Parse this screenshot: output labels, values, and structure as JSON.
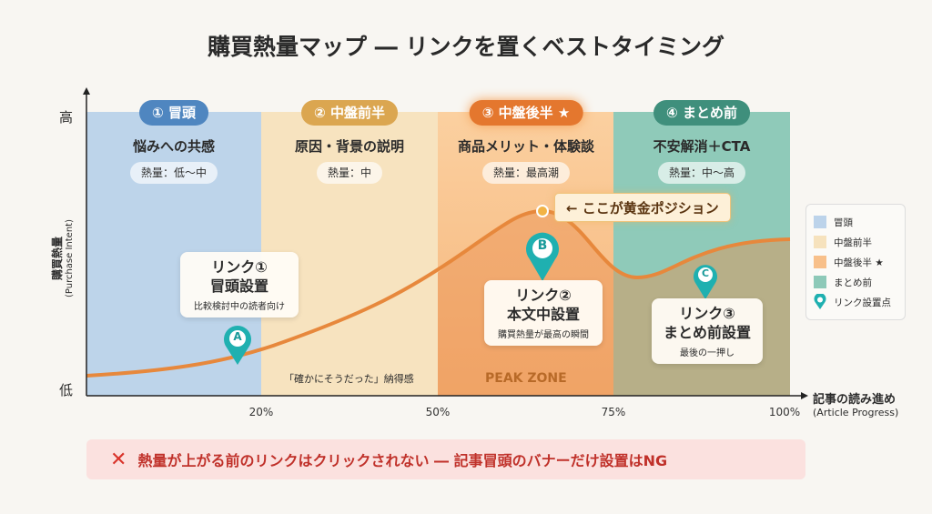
{
  "title": "購買熱量マップ ― リンクを置くベストタイミング",
  "y_axis": {
    "label": "購買熱量",
    "sub": "(Purchase Intent)",
    "high": "高",
    "low": "低"
  },
  "x_axis": {
    "label": "記事の読み進め",
    "sub": "(Article Progress)",
    "ticks": [
      "20%",
      "50%",
      "75%",
      "100%"
    ]
  },
  "phases": [
    {
      "badge": "① 冒頭",
      "heading": "悩みへの共感",
      "heat": "熱量：低〜中",
      "color": "#4f86c0",
      "bg": "#bcd3ea"
    },
    {
      "badge": "② 中盤前半",
      "heading": "原因・背景の説明",
      "heat": "熱量：中",
      "color": "#dba650",
      "bg": "#f6e2bd"
    },
    {
      "badge": "③ 中盤後半 ★",
      "heading": "商品メリット・体験談",
      "heat": "熱量：最高潮",
      "color": "#e4772e",
      "bg": "#f8c08a"
    },
    {
      "badge": "④ まとめ前",
      "heading": "不安解消＋CTA",
      "heat": "熱量：中〜高",
      "color": "#3f8f7c",
      "bg": "#8dc9b8"
    }
  ],
  "callout": "← ここが黄金ポジション",
  "links": [
    {
      "marker": "A",
      "title1": "リンク①",
      "title2": "冒頭設置",
      "sub": "比較検討中の読者向け"
    },
    {
      "marker": "B",
      "title1": "リンク②",
      "title2": "本文中設置",
      "sub": "購買熱量が最高の瞬間"
    },
    {
      "marker": "C",
      "title1": "リンク③",
      "title2": "まとめ前設置",
      "sub": "最後の一押し"
    }
  ],
  "notes": {
    "phase2": "「確かにそうだった」納得感",
    "peak": "PEAK ZONE"
  },
  "legend": [
    "冒頭",
    "中盤前半",
    "中盤後半 ★",
    "まとめ前",
    "リンク設置点"
  ],
  "banner": {
    "icon": "✕",
    "text": "熱量が上がる前のリンクはクリックされない ― 記事冒頭のバナーだけ設置はNG"
  }
}
